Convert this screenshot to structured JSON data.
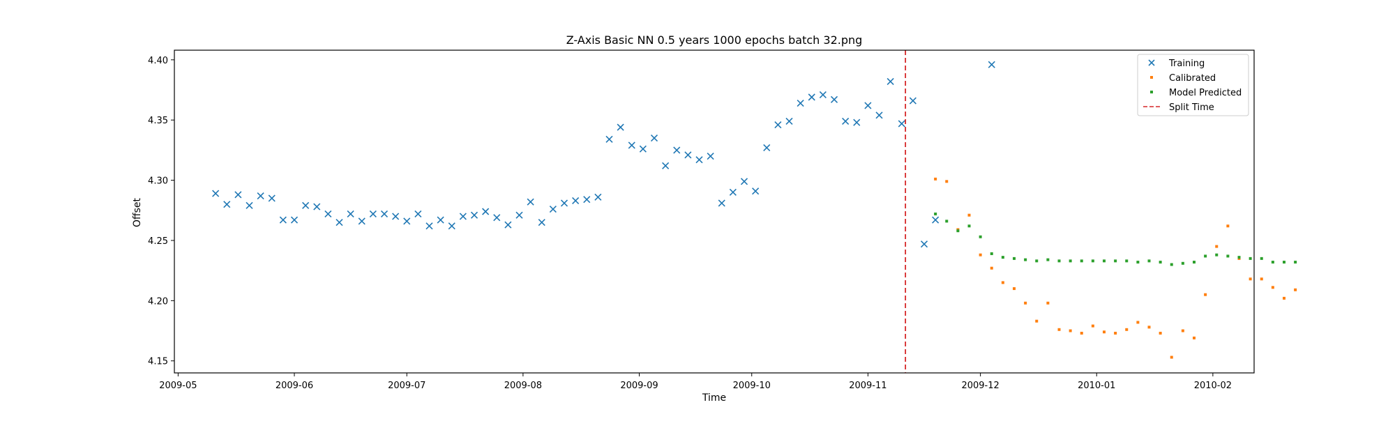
{
  "chart_data": {
    "type": "scatter",
    "title": "Z-Axis Basic NN 0.5 years 1000 epochs batch 32.png",
    "xlabel": "Time",
    "ylabel": "Offset",
    "xlim": [
      "2009-04-30",
      "2010-02-12"
    ],
    "ylim": [
      4.14,
      4.408
    ],
    "x_ticks": [
      {
        "date": "2009-05-01",
        "label": "2009-05"
      },
      {
        "date": "2009-06-01",
        "label": "2009-06"
      },
      {
        "date": "2009-07-01",
        "label": "2009-07"
      },
      {
        "date": "2009-08-01",
        "label": "2009-08"
      },
      {
        "date": "2009-09-01",
        "label": "2009-09"
      },
      {
        "date": "2009-10-01",
        "label": "2009-10"
      },
      {
        "date": "2009-11-01",
        "label": "2009-11"
      },
      {
        "date": "2009-12-01",
        "label": "2009-12"
      },
      {
        "date": "2010-01-01",
        "label": "2010-01"
      },
      {
        "date": "2010-02-01",
        "label": "2010-02"
      }
    ],
    "y_ticks": [
      {
        "value": 4.15,
        "label": "4.15"
      },
      {
        "value": 4.2,
        "label": "4.20"
      },
      {
        "value": 4.25,
        "label": "4.25"
      },
      {
        "value": 4.3,
        "label": "4.30"
      },
      {
        "value": 4.35,
        "label": "4.35"
      },
      {
        "value": 4.4,
        "label": "4.40"
      }
    ],
    "grid": false,
    "legend_position": "top-right",
    "split_time": "2009-11-11",
    "series": [
      {
        "name": "Training",
        "marker": "x",
        "color": "#1f77b4",
        "points": [
          [
            "2009-05-11",
            4.289
          ],
          [
            "2009-05-14",
            4.28
          ],
          [
            "2009-05-17",
            4.288
          ],
          [
            "2009-05-20",
            4.279
          ],
          [
            "2009-05-23",
            4.287
          ],
          [
            "2009-05-26",
            4.285
          ],
          [
            "2009-05-29",
            4.267
          ],
          [
            "2009-06-01",
            4.267
          ],
          [
            "2009-06-04",
            4.279
          ],
          [
            "2009-06-07",
            4.278
          ],
          [
            "2009-06-10",
            4.272
          ],
          [
            "2009-06-13",
            4.265
          ],
          [
            "2009-06-16",
            4.272
          ],
          [
            "2009-06-19",
            4.266
          ],
          [
            "2009-06-22",
            4.272
          ],
          [
            "2009-06-25",
            4.272
          ],
          [
            "2009-06-28",
            4.27
          ],
          [
            "2009-07-01",
            4.266
          ],
          [
            "2009-07-04",
            4.272
          ],
          [
            "2009-07-07",
            4.262
          ],
          [
            "2009-07-10",
            4.267
          ],
          [
            "2009-07-13",
            4.262
          ],
          [
            "2009-07-16",
            4.27
          ],
          [
            "2009-07-19",
            4.271
          ],
          [
            "2009-07-22",
            4.274
          ],
          [
            "2009-07-25",
            4.269
          ],
          [
            "2009-07-28",
            4.263
          ],
          [
            "2009-07-31",
            4.271
          ],
          [
            "2009-08-03",
            4.282
          ],
          [
            "2009-08-06",
            4.265
          ],
          [
            "2009-08-09",
            4.276
          ],
          [
            "2009-08-12",
            4.281
          ],
          [
            "2009-08-15",
            4.283
          ],
          [
            "2009-08-18",
            4.284
          ],
          [
            "2009-08-21",
            4.286
          ],
          [
            "2009-08-24",
            4.334
          ],
          [
            "2009-08-27",
            4.344
          ],
          [
            "2009-08-30",
            4.329
          ],
          [
            "2009-09-02",
            4.326
          ],
          [
            "2009-09-05",
            4.335
          ],
          [
            "2009-09-08",
            4.312
          ],
          [
            "2009-09-11",
            4.325
          ],
          [
            "2009-09-14",
            4.321
          ],
          [
            "2009-09-17",
            4.317
          ],
          [
            "2009-09-20",
            4.32
          ],
          [
            "2009-09-23",
            4.281
          ],
          [
            "2009-09-26",
            4.29
          ],
          [
            "2009-09-29",
            4.299
          ],
          [
            "2009-10-02",
            4.291
          ],
          [
            "2009-10-05",
            4.327
          ],
          [
            "2009-10-08",
            4.346
          ],
          [
            "2009-10-11",
            4.349
          ],
          [
            "2009-10-14",
            4.364
          ],
          [
            "2009-10-17",
            4.369
          ],
          [
            "2009-10-20",
            4.371
          ],
          [
            "2009-10-23",
            4.367
          ],
          [
            "2009-10-26",
            4.349
          ],
          [
            "2009-10-29",
            4.348
          ],
          [
            "2009-11-01",
            4.362
          ],
          [
            "2009-11-04",
            4.354
          ],
          [
            "2009-11-07",
            4.382
          ],
          [
            "2009-11-10",
            4.347
          ],
          [
            "2009-11-13",
            4.366
          ],
          [
            "2009-11-16",
            4.247
          ],
          [
            "2009-11-19",
            4.267
          ],
          [
            "2009-12-04",
            4.396
          ]
        ]
      },
      {
        "name": "Calibrated",
        "marker": "dot",
        "color": "#ff7f0e",
        "points": [
          [
            "2009-11-19",
            4.301
          ],
          [
            "2009-11-22",
            4.299
          ],
          [
            "2009-11-25",
            4.259
          ],
          [
            "2009-11-28",
            4.271
          ],
          [
            "2009-12-01",
            4.238
          ],
          [
            "2009-12-04",
            4.227
          ],
          [
            "2009-12-07",
            4.215
          ],
          [
            "2009-12-10",
            4.21
          ],
          [
            "2009-12-13",
            4.198
          ],
          [
            "2009-12-16",
            4.183
          ],
          [
            "2009-12-19",
            4.198
          ],
          [
            "2009-12-22",
            4.176
          ],
          [
            "2009-12-25",
            4.175
          ],
          [
            "2009-12-28",
            4.173
          ],
          [
            "2009-12-31",
            4.179
          ],
          [
            "2010-01-03",
            4.174
          ],
          [
            "2010-01-06",
            4.173
          ],
          [
            "2010-01-09",
            4.176
          ],
          [
            "2010-01-12",
            4.182
          ],
          [
            "2010-01-15",
            4.178
          ],
          [
            "2010-01-18",
            4.173
          ],
          [
            "2010-01-21",
            4.153
          ],
          [
            "2010-01-24",
            4.175
          ],
          [
            "2010-01-27",
            4.169
          ],
          [
            "2010-01-30",
            4.205
          ],
          [
            "2010-02-02",
            4.245
          ],
          [
            "2010-02-05",
            4.262
          ],
          [
            "2010-02-08",
            4.235
          ],
          [
            "2010-02-11",
            4.218
          ],
          [
            "2010-02-14",
            4.218
          ],
          [
            "2010-02-17",
            4.211
          ],
          [
            "2010-02-20",
            4.202
          ],
          [
            "2010-02-23",
            4.209
          ]
        ]
      },
      {
        "name": "Model Predicted",
        "marker": "dot",
        "color": "#2ca02c",
        "points": [
          [
            "2009-11-19",
            4.272
          ],
          [
            "2009-11-22",
            4.266
          ],
          [
            "2009-11-25",
            4.258
          ],
          [
            "2009-11-28",
            4.262
          ],
          [
            "2009-12-01",
            4.253
          ],
          [
            "2009-12-04",
            4.239
          ],
          [
            "2009-12-07",
            4.236
          ],
          [
            "2009-12-10",
            4.235
          ],
          [
            "2009-12-13",
            4.234
          ],
          [
            "2009-12-16",
            4.233
          ],
          [
            "2009-12-19",
            4.234
          ],
          [
            "2009-12-22",
            4.233
          ],
          [
            "2009-12-25",
            4.233
          ],
          [
            "2009-12-28",
            4.233
          ],
          [
            "2009-12-31",
            4.233
          ],
          [
            "2010-01-03",
            4.233
          ],
          [
            "2010-01-06",
            4.233
          ],
          [
            "2010-01-09",
            4.233
          ],
          [
            "2010-01-12",
            4.232
          ],
          [
            "2010-01-15",
            4.233
          ],
          [
            "2010-01-18",
            4.232
          ],
          [
            "2010-01-21",
            4.23
          ],
          [
            "2010-01-24",
            4.231
          ],
          [
            "2010-01-27",
            4.232
          ],
          [
            "2010-01-30",
            4.237
          ],
          [
            "2010-02-02",
            4.238
          ],
          [
            "2010-02-05",
            4.237
          ],
          [
            "2010-02-08",
            4.236
          ],
          [
            "2010-02-11",
            4.235
          ],
          [
            "2010-02-14",
            4.235
          ],
          [
            "2010-02-17",
            4.232
          ],
          [
            "2010-02-20",
            4.232
          ],
          [
            "2010-02-23",
            4.232
          ]
        ]
      }
    ],
    "split_line": {
      "label": "Split Time",
      "color": "#d62728",
      "style": "dashed"
    }
  }
}
